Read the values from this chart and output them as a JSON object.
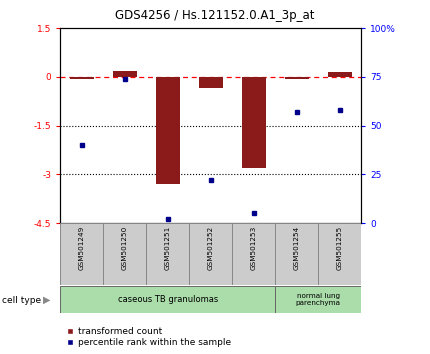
{
  "title": "GDS4256 / Hs.121152.0.A1_3p_at",
  "samples": [
    "GSM501249",
    "GSM501250",
    "GSM501251",
    "GSM501252",
    "GSM501253",
    "GSM501254",
    "GSM501255"
  ],
  "transformed_count": [
    -0.05,
    0.2,
    -3.3,
    -0.35,
    -2.8,
    -0.05,
    0.15
  ],
  "percentile_rank": [
    40,
    74,
    2,
    22,
    5,
    57,
    58
  ],
  "ylim_left": [
    -4.5,
    1.5
  ],
  "ylim_right": [
    0,
    100
  ],
  "dotted_lines": [
    -1.5,
    -3.0
  ],
  "bar_color": "#8B1A1A",
  "dot_color": "#00008B",
  "bar_width": 0.55,
  "legend_red_label": "transformed count",
  "legend_blue_label": "percentile rank within the sample"
}
